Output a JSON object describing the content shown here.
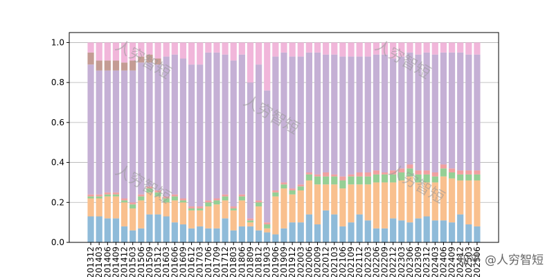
{
  "chart_data": {
    "type": "stacked_bar",
    "categories": [
      "201312",
      "201403",
      "201406",
      "201409",
      "201412",
      "201503",
      "201506",
      "201509",
      "201512",
      "201603",
      "201606",
      "201609",
      "201612",
      "201703",
      "201706",
      "201709",
      "201712",
      "201803",
      "201806",
      "201809",
      "201812",
      "201903",
      "201906",
      "201909",
      "201912",
      "202003",
      "202006",
      "202009",
      "202012",
      "202103",
      "202106",
      "202109",
      "202112",
      "202203",
      "202206",
      "202209",
      "202212",
      "202303",
      "202306",
      "202309",
      "202312",
      "202403",
      "202406",
      "202409",
      "202412",
      "202503",
      "202506"
    ],
    "series": [
      {
        "color": "#8fbbd9",
        "values": [
          0.13,
          0.13,
          0.12,
          0.12,
          0.08,
          0.06,
          0.07,
          0.14,
          0.14,
          0.13,
          0.1,
          0.09,
          0.07,
          0.08,
          0.07,
          0.07,
          0.12,
          0.06,
          0.08,
          0.08,
          0.06,
          0.05,
          0.04,
          0.07,
          0.1,
          0.1,
          0.14,
          0.09,
          0.16,
          0.14,
          0.08,
          0.1,
          0.14,
          0.11,
          0.07,
          0.07,
          0.12,
          0.11,
          0.1,
          0.12,
          0.13,
          0.11,
          0.11,
          0.1,
          0.14,
          0.09,
          0.08
        ]
      },
      {
        "color": "#f9c08e",
        "values": [
          0.09,
          0.09,
          0.11,
          0.11,
          0.12,
          0.11,
          0.14,
          0.11,
          0.09,
          0.07,
          0.11,
          0.11,
          0.09,
          0.08,
          0.11,
          0.12,
          0.09,
          0.1,
          0.13,
          0.02,
          0.12,
          0.02,
          0.19,
          0.2,
          0.14,
          0.16,
          0.17,
          0.2,
          0.13,
          0.15,
          0.19,
          0.19,
          0.15,
          0.18,
          0.23,
          0.23,
          0.18,
          0.2,
          0.23,
          0.18,
          0.17,
          0.19,
          0.22,
          0.22,
          0.17,
          0.22,
          0.23
        ]
      },
      {
        "color": "#95cf95",
        "values": [
          0.01,
          0.01,
          0.01,
          0.01,
          0.01,
          0.02,
          0.02,
          0.02,
          0.02,
          0.02,
          0.02,
          0.01,
          0.01,
          0.01,
          0.02,
          0.02,
          0.02,
          0.01,
          0.02,
          0.01,
          0.02,
          0.02,
          0.02,
          0.02,
          0.02,
          0.02,
          0.03,
          0.04,
          0.04,
          0.04,
          0.04,
          0.04,
          0.04,
          0.04,
          0.04,
          0.04,
          0.04,
          0.04,
          0.04,
          0.04,
          0.04,
          0.03,
          0.04,
          0.03,
          0.03,
          0.03,
          0.03
        ]
      },
      {
        "color": "#f0a0a0",
        "values": [
          0.01,
          0.01,
          0.01,
          0.01,
          0.01,
          0.01,
          0.01,
          0.01,
          0.01,
          0.01,
          0.01,
          0.01,
          0.01,
          0.01,
          0.01,
          0.01,
          0.01,
          0.01,
          0.01,
          0.01,
          0.01,
          0.01,
          0.01,
          0.01,
          0.01,
          0.01,
          0.01,
          0.01,
          0.02,
          0.01,
          0.02,
          0.01,
          0.02,
          0.02,
          0.02,
          0.01,
          0.02,
          0.02,
          0.02,
          0.02,
          0.02,
          0.02,
          0.02,
          0.02,
          0.02,
          0.02,
          0.02
        ]
      },
      {
        "color": "#c5b0d5",
        "values": [
          0.65,
          0.62,
          0.61,
          0.61,
          0.64,
          0.66,
          0.66,
          0.62,
          0.63,
          0.7,
          0.7,
          0.7,
          0.71,
          0.71,
          0.74,
          0.73,
          0.7,
          0.73,
          0.7,
          0.68,
          0.68,
          0.66,
          0.67,
          0.65,
          0.66,
          0.64,
          0.6,
          0.61,
          0.59,
          0.6,
          0.6,
          0.59,
          0.58,
          0.58,
          0.58,
          0.59,
          0.56,
          0.56,
          0.56,
          0.58,
          0.59,
          0.59,
          0.56,
          0.58,
          0.59,
          0.58,
          0.58
        ]
      },
      {
        "color": "#c49c94",
        "values": [
          0.06,
          0.05,
          0.05,
          0.05,
          0.04,
          0.05,
          0.03,
          0.04,
          0.03,
          0,
          0,
          0,
          0,
          0,
          0,
          0,
          0,
          0,
          0,
          0,
          0,
          0,
          0,
          0,
          0,
          0,
          0,
          0,
          0,
          0,
          0,
          0,
          0,
          0,
          0,
          0,
          0,
          0,
          0,
          0,
          0,
          0,
          0,
          0,
          0,
          0,
          0
        ]
      },
      {
        "color": "#f1b6da",
        "values": [
          0.05,
          0.09,
          0.09,
          0.09,
          0.1,
          0.09,
          0.07,
          0.06,
          0.08,
          0.07,
          0.06,
          0.08,
          0.11,
          0.11,
          0.05,
          0.05,
          0.06,
          0.09,
          0.06,
          0.2,
          0.11,
          0.24,
          0.07,
          0.05,
          0.07,
          0.07,
          0.05,
          0.05,
          0.06,
          0.06,
          0.07,
          0.07,
          0.07,
          0.07,
          0.06,
          0.06,
          0.08,
          0.07,
          0.05,
          0.06,
          0.05,
          0.06,
          0.05,
          0.05,
          0.05,
          0.06,
          0.06
        ]
      }
    ],
    "ylim": [
      0,
      1.05
    ],
    "yticks": [
      {
        "value": 0,
        "label": "0.0"
      },
      {
        "value": 0.2,
        "label": "0.2"
      },
      {
        "value": 0.4,
        "label": "0.4"
      },
      {
        "value": 0.6,
        "label": "0.6"
      },
      {
        "value": 0.8,
        "label": "0.8"
      },
      {
        "value": 1,
        "label": "1.0"
      }
    ],
    "grid": true,
    "watermark": "人穷智短",
    "credit": "知乎 @人穷智短"
  }
}
